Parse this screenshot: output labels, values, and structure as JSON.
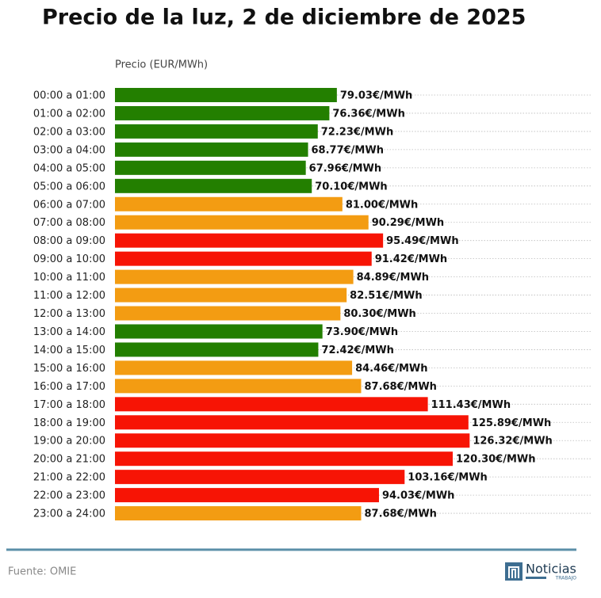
{
  "chart_data": {
    "type": "barh",
    "title": "Precio de la luz, 2 de diciembre de 2025",
    "xlabel": "Precio (EUR/MWh)",
    "categories": [
      "00:00 a 01:00",
      "01:00 a 02:00",
      "02:00 a 03:00",
      "03:00 a 04:00",
      "04:00 a 05:00",
      "05:00 a 06:00",
      "06:00 a 07:00",
      "07:00 a 08:00",
      "08:00 a 09:00",
      "09:00 a 10:00",
      "10:00 a 11:00",
      "11:00 a 12:00",
      "12:00 a 13:00",
      "13:00 a 14:00",
      "14:00 a 15:00",
      "15:00 a 16:00",
      "16:00 a 17:00",
      "17:00 a 18:00",
      "18:00 a 19:00",
      "19:00 a 20:00",
      "20:00 a 21:00",
      "21:00 a 22:00",
      "22:00 a 23:00",
      "23:00 a 24:00"
    ],
    "values": [
      79.03,
      76.36,
      72.23,
      68.77,
      67.96,
      70.1,
      81.0,
      90.29,
      95.49,
      91.42,
      84.89,
      82.51,
      80.3,
      73.9,
      72.42,
      84.46,
      87.68,
      111.43,
      125.89,
      126.32,
      120.3,
      103.16,
      94.03,
      87.68
    ],
    "value_labels": [
      "79.03€/MWh",
      "76.36€/MWh",
      "72.23€/MWh",
      "68.77€/MWh",
      "67.96€/MWh",
      "70.10€/MWh",
      "81.00€/MWh",
      "90.29€/MWh",
      "95.49€/MWh",
      "91.42€/MWh",
      "84.89€/MWh",
      "82.51€/MWh",
      "80.30€/MWh",
      "73.90€/MWh",
      "72.42€/MWh",
      "84.46€/MWh",
      "87.68€/MWh",
      "111.43€/MWh",
      "125.89€/MWh",
      "126.32€/MWh",
      "120.30€/MWh",
      "103.16€/MWh",
      "94.03€/MWh",
      "87.68€/MWh"
    ],
    "colors": [
      "#237f00",
      "#237f00",
      "#237f00",
      "#237f00",
      "#237f00",
      "#237f00",
      "#f39c12",
      "#f39c12",
      "#f71405",
      "#f71405",
      "#f39c12",
      "#f39c12",
      "#f39c12",
      "#237f00",
      "#237f00",
      "#f39c12",
      "#f39c12",
      "#f71405",
      "#f71405",
      "#f71405",
      "#f71405",
      "#f71405",
      "#f71405",
      "#f39c12"
    ],
    "xlim": [
      0,
      170
    ],
    "grid": true,
    "source": "Fuente: OMIE"
  },
  "logo": {
    "text": "Noticias",
    "subtext": "TRABAJO"
  }
}
